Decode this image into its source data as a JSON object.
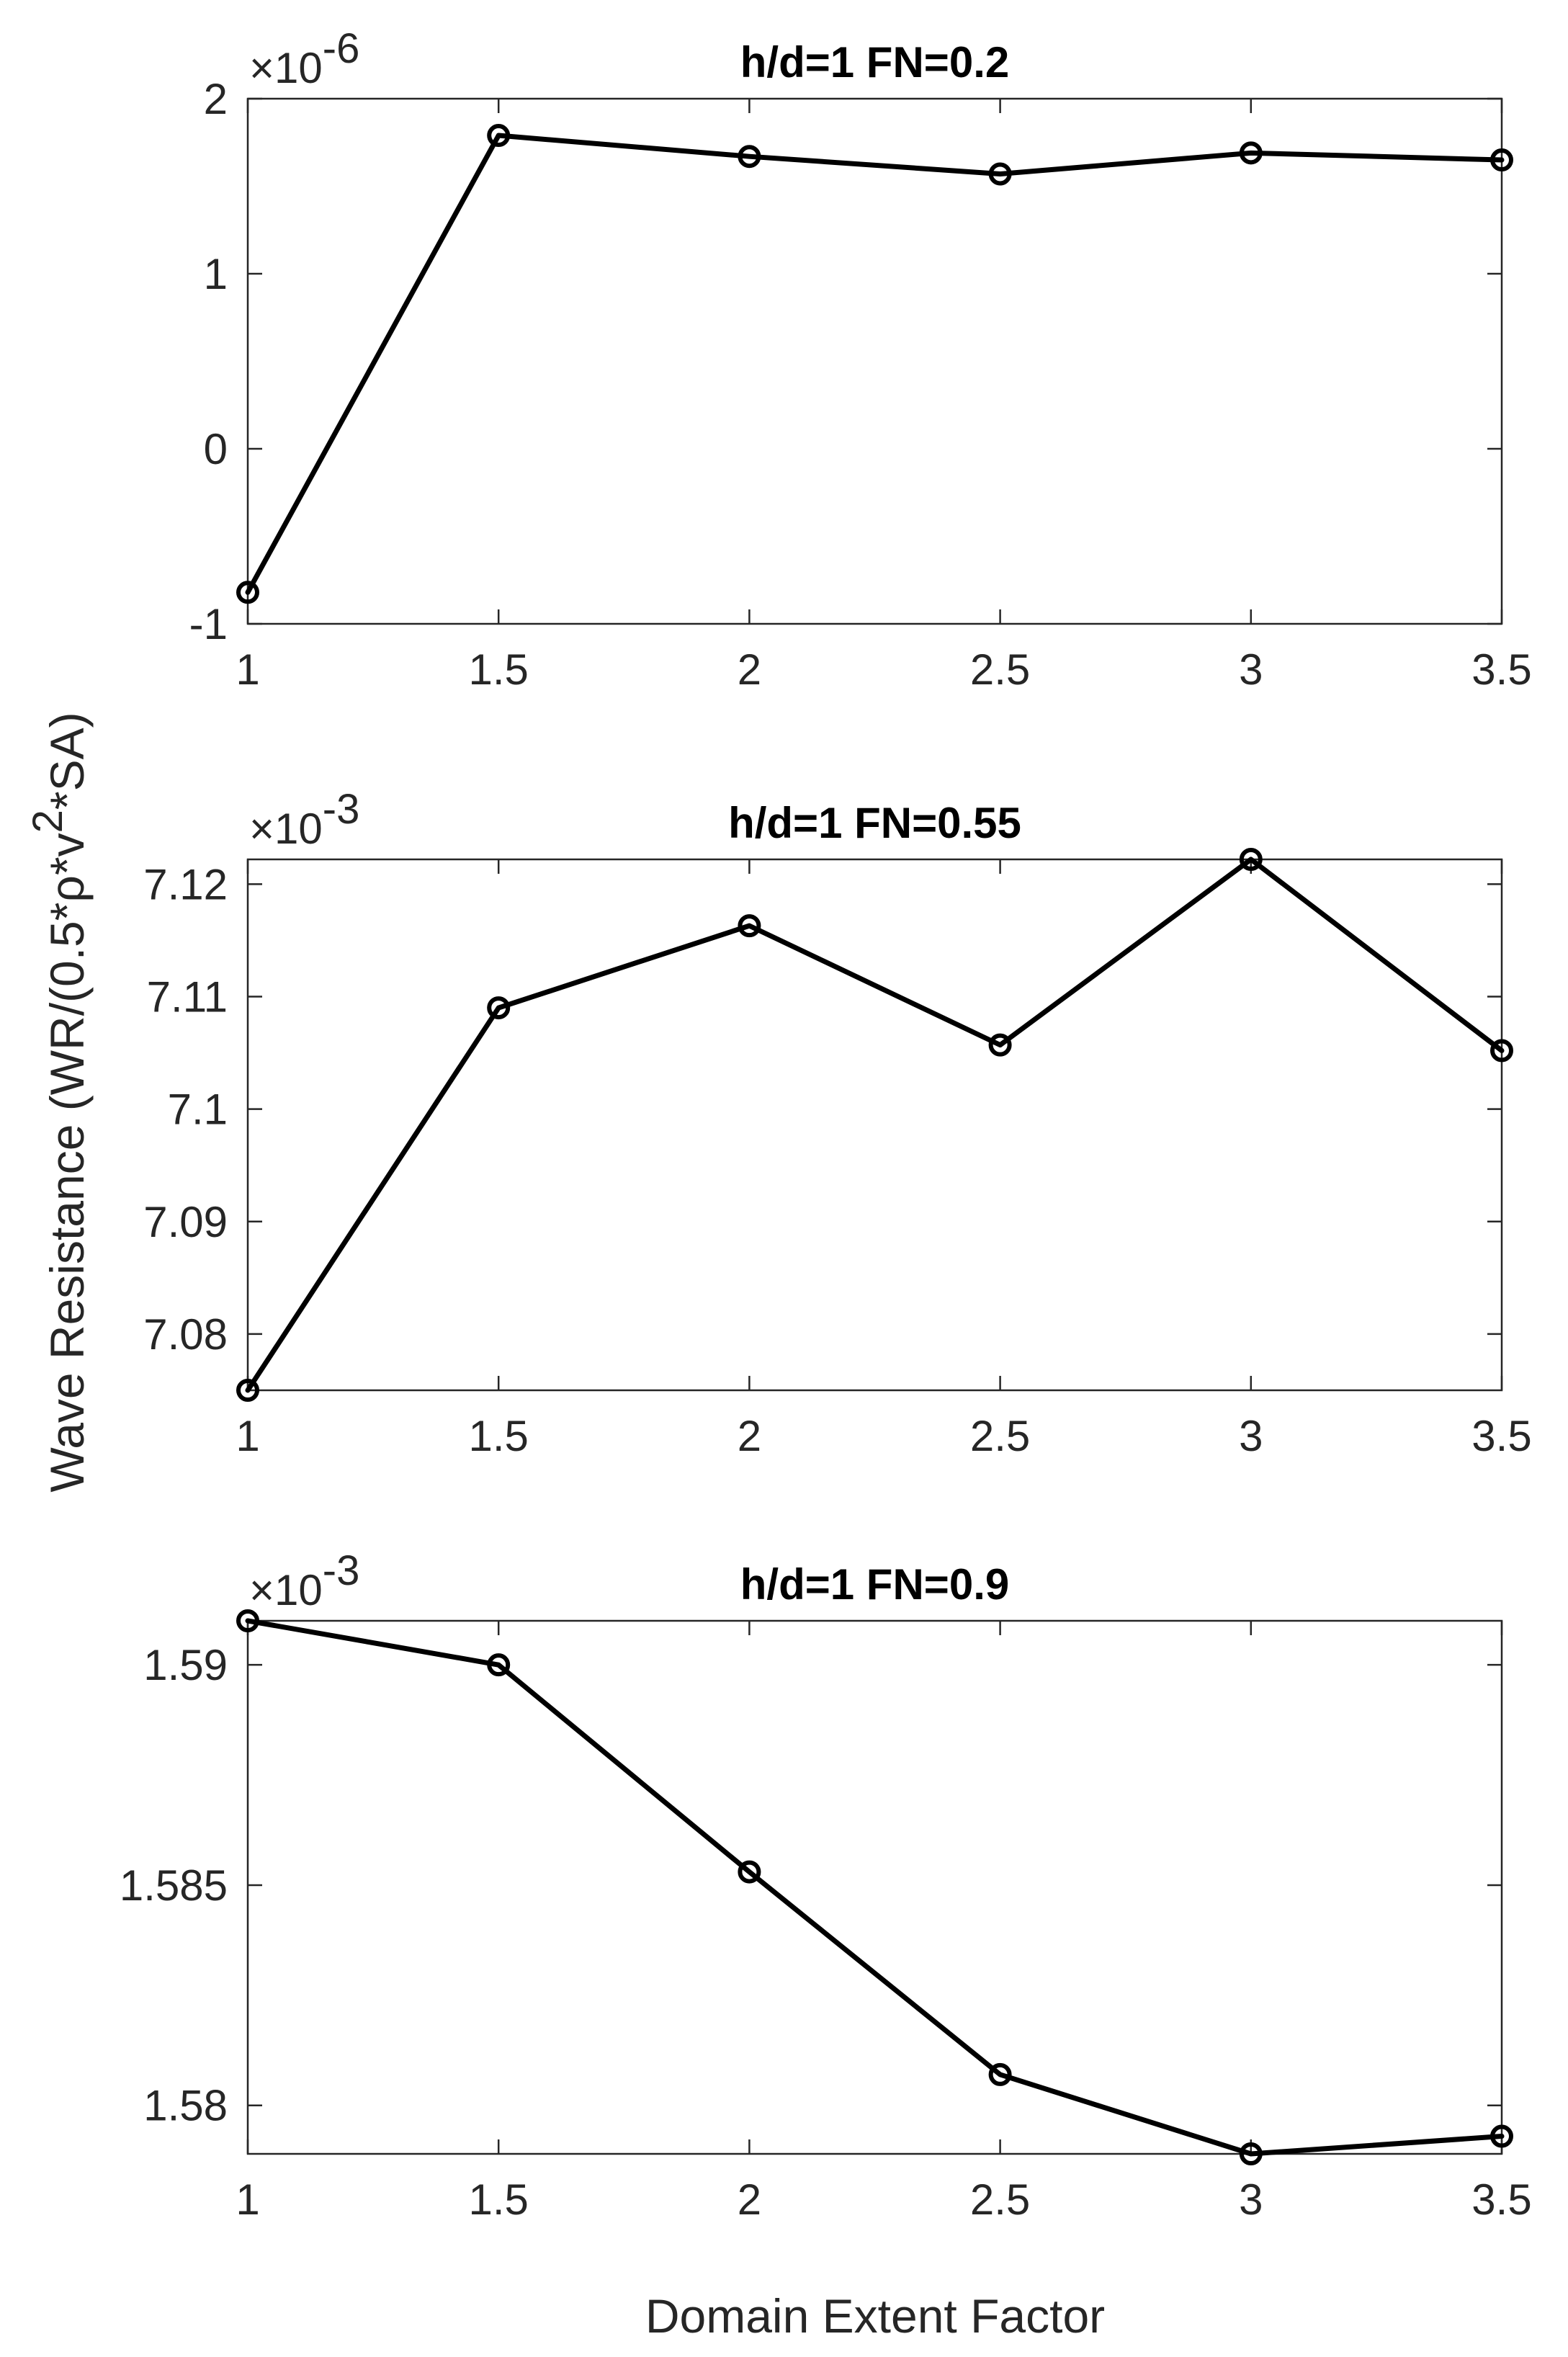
{
  "figure": {
    "ylabel_base": "Wave Resistance (WR/(0.5*",
    "ylabel_rho": "ρ",
    "ylabel_mid": "*v",
    "ylabel_sup": "2",
    "ylabel_end": "*SA)",
    "xlabel": "Domain Extent Factor"
  },
  "chart_data": [
    {
      "type": "line",
      "title": "h/d=1 FN=0.2",
      "exponent_label": "×10",
      "exponent_power": "-6",
      "x": [
        1,
        1.5,
        2,
        2.5,
        3,
        3.5
      ],
      "y": [
        -0.82,
        1.79,
        1.67,
        1.57,
        1.69,
        1.65
      ],
      "xlim": [
        1,
        3.5
      ],
      "ylim": [
        -1,
        2
      ],
      "xticks": [
        1,
        1.5,
        2,
        2.5,
        3,
        3.5
      ],
      "xtick_labels": [
        "1",
        "1.5",
        "2",
        "2.5",
        "3",
        "3.5"
      ],
      "yticks": [
        -1,
        0,
        1,
        2
      ],
      "ytick_labels": [
        "-1",
        "0",
        "1",
        "2"
      ],
      "marker": "circle",
      "color": "#000000",
      "grid": false
    },
    {
      "type": "line",
      "title": "h/d=1 FN=0.55",
      "exponent_label": "×10",
      "exponent_power": "-3",
      "x": [
        1,
        1.5,
        2,
        2.5,
        3,
        3.5
      ],
      "y": [
        7.075,
        7.109,
        7.1163,
        7.1057,
        7.1222,
        7.1052
      ],
      "xlim": [
        1,
        3.5
      ],
      "ylim": [
        7.075,
        7.1222
      ],
      "xticks": [
        1,
        1.5,
        2,
        2.5,
        3,
        3.5
      ],
      "xtick_labels": [
        "1",
        "1.5",
        "2",
        "2.5",
        "3",
        "3.5"
      ],
      "yticks": [
        7.08,
        7.09,
        7.1,
        7.11,
        7.12
      ],
      "ytick_labels": [
        "7.08",
        "7.09",
        "7.1",
        "7.11",
        "7.12"
      ],
      "marker": "circle",
      "color": "#000000",
      "grid": false
    },
    {
      "type": "line",
      "title": "h/d=1 FN=0.9",
      "exponent_label": "×10",
      "exponent_power": "-3",
      "x": [
        1,
        1.5,
        2,
        2.5,
        3,
        3.5
      ],
      "y": [
        1.591,
        1.59,
        1.5853,
        1.5807,
        1.5789,
        1.5793
      ],
      "xlim": [
        1,
        3.5
      ],
      "ylim": [
        1.5789,
        1.591
      ],
      "xticks": [
        1,
        1.5,
        2,
        2.5,
        3,
        3.5
      ],
      "xtick_labels": [
        "1",
        "1.5",
        "2",
        "2.5",
        "3",
        "3.5"
      ],
      "yticks": [
        1.58,
        1.585,
        1.59
      ],
      "ytick_labels": [
        "1.58",
        "1.585",
        "1.59"
      ],
      "marker": "circle",
      "color": "#000000",
      "grid": false
    }
  ]
}
